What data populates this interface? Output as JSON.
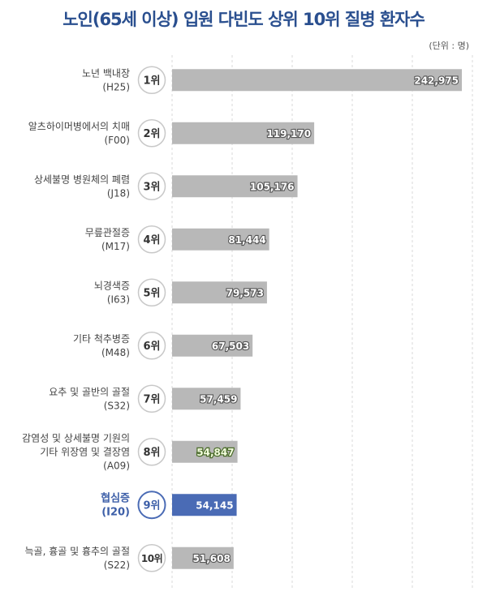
{
  "chart_data": {
    "type": "bar",
    "orientation": "horizontal",
    "title": "노인(65세 이상) 입원 다빈도 상위 10위 질병 환자수",
    "unit_note": "(단위 : 명)",
    "xlim": [
      0,
      245000
    ],
    "grid": true,
    "highlight_index": 8,
    "colors": {
      "bar": "#b8b8b8",
      "highlight": "#4a6bb5",
      "title": "#2a4f8f",
      "circle_border": "#c8c8c8"
    },
    "categories": [
      {
        "rank": "1위",
        "name_lines": [
          "노년 백내장"
        ],
        "code": "(H25)",
        "value": 242975,
        "value_label": "242,975"
      },
      {
        "rank": "2위",
        "name_lines": [
          "알츠하이머병에서의 치매"
        ],
        "code": "(F00)",
        "value": 119170,
        "value_label": "119,170"
      },
      {
        "rank": "3위",
        "name_lines": [
          "상세불명 병원체의 폐렴"
        ],
        "code": "(J18)",
        "value": 105176,
        "value_label": "105,176"
      },
      {
        "rank": "4위",
        "name_lines": [
          "무릎관절증"
        ],
        "code": "(M17)",
        "value": 81444,
        "value_label": "81,444"
      },
      {
        "rank": "5위",
        "name_lines": [
          "뇌경색증"
        ],
        "code": "(I63)",
        "value": 79573,
        "value_label": "79,573"
      },
      {
        "rank": "6위",
        "name_lines": [
          "기타 척추병증"
        ],
        "code": "(M48)",
        "value": 67503,
        "value_label": "67,503"
      },
      {
        "rank": "7위",
        "name_lines": [
          "요추 및 골반의 골절"
        ],
        "code": "(S32)",
        "value": 57459,
        "value_label": "57,459"
      },
      {
        "rank": "8위",
        "name_lines": [
          "감염성 및 상세불명 기원의",
          "기타 위장염 및 결장염"
        ],
        "code": "(A09)",
        "value": 54847,
        "value_label": "54,847"
      },
      {
        "rank": "9위",
        "name_lines": [
          "협심증"
        ],
        "code": "(I20)",
        "value": 54145,
        "value_label": "54,145"
      },
      {
        "rank": "10위",
        "name_lines": [
          "늑골, 흉골 및 흉추의 골절"
        ],
        "code": "(S22)",
        "value": 51608,
        "value_label": "51,608"
      }
    ]
  }
}
